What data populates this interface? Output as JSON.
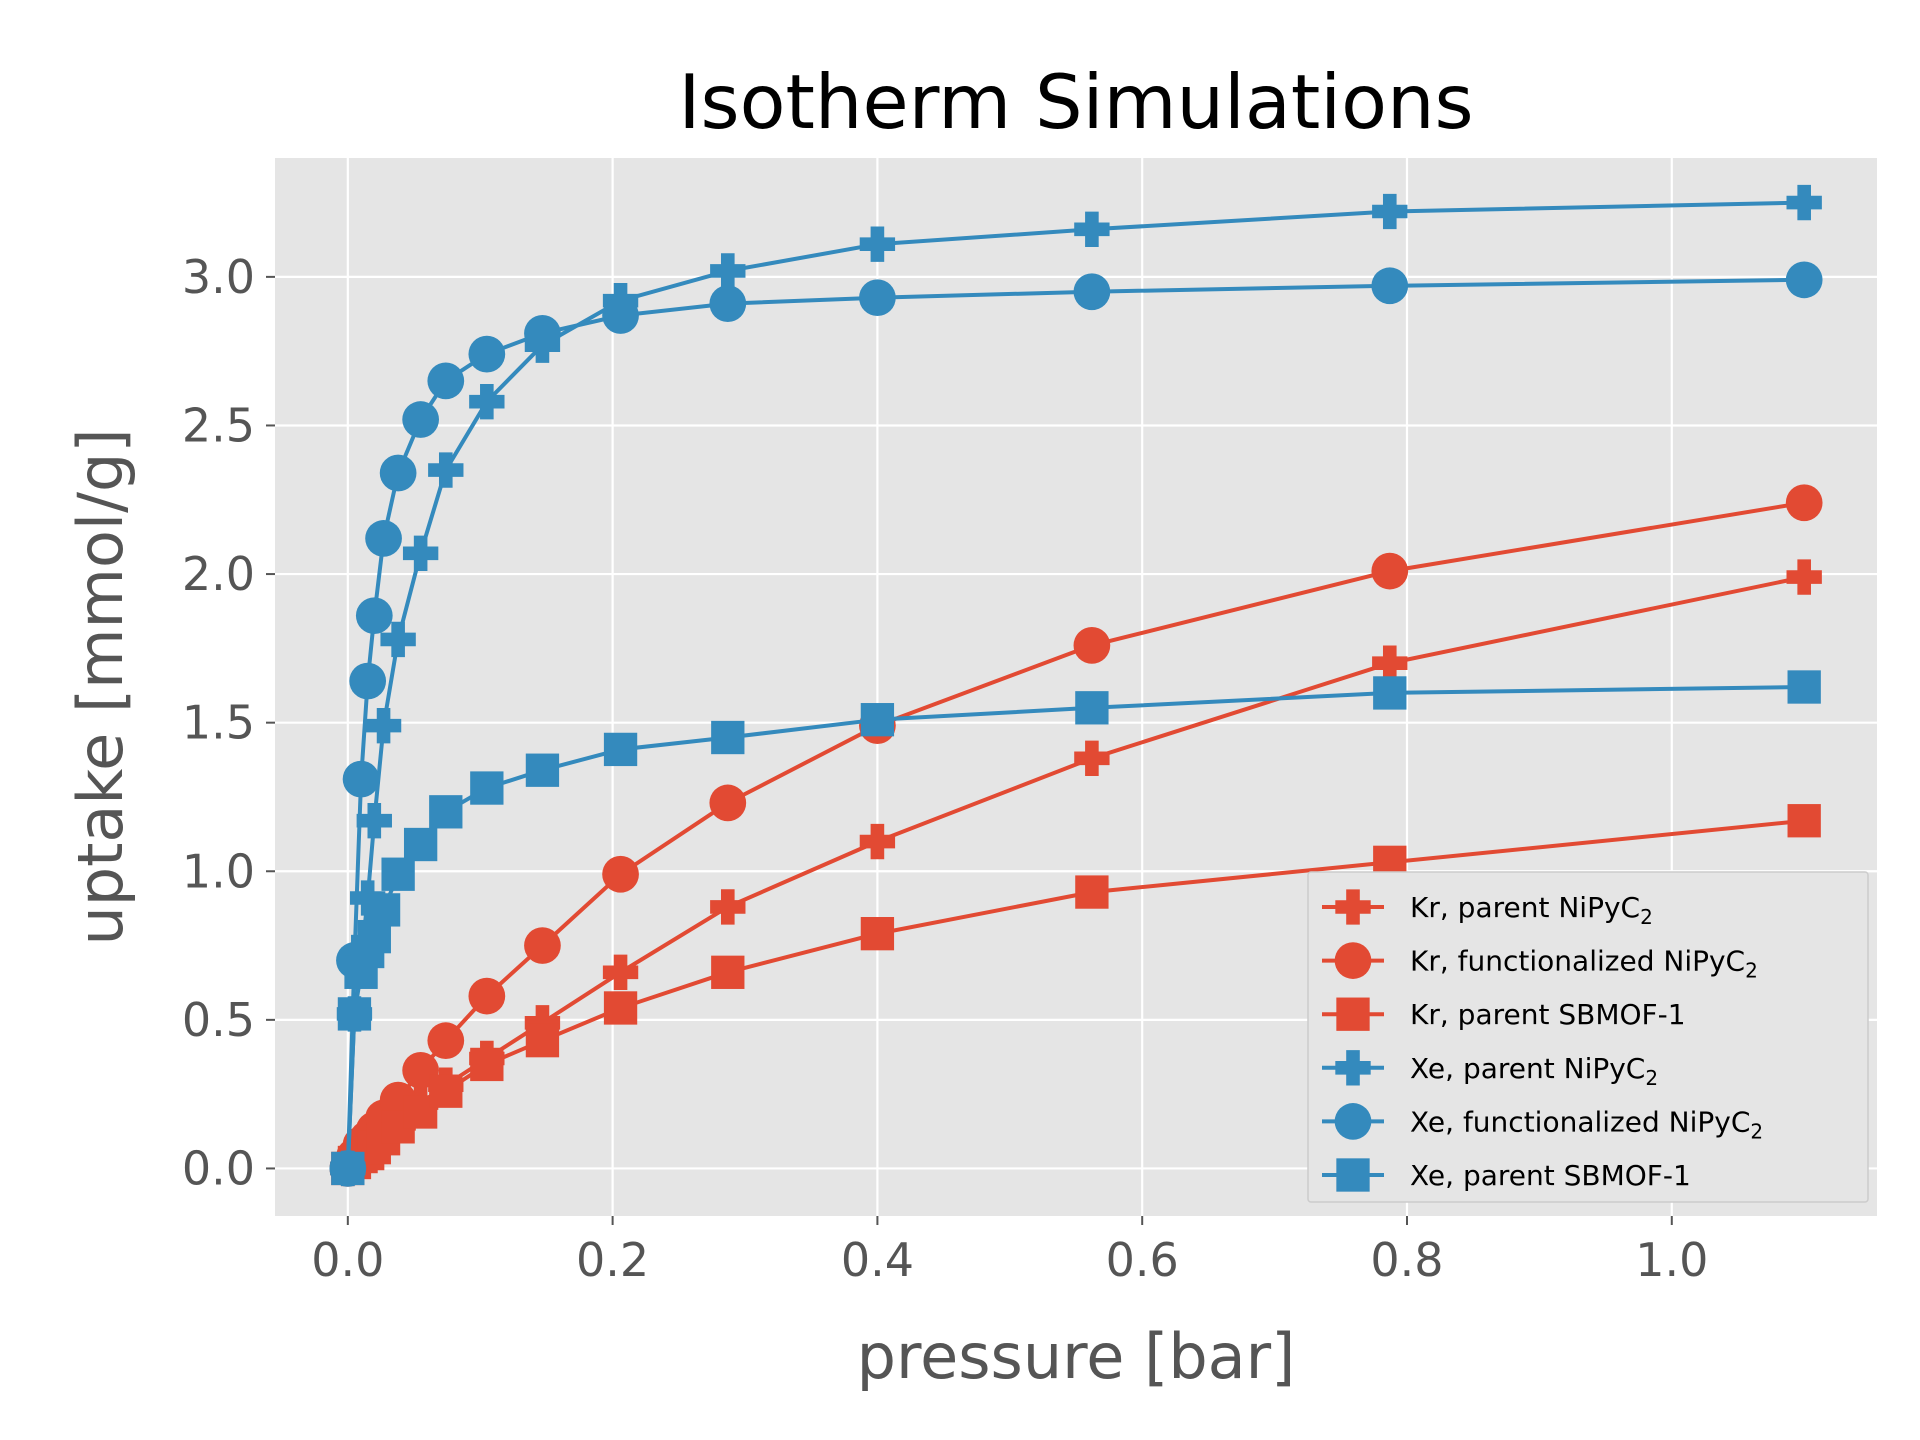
{
  "chart_data": {
    "type": "line",
    "title": "Isotherm Simulations",
    "xlabel": "pressure [bar]",
    "ylabel": "uptake [mmol/g]",
    "xlim": [
      -0.055,
      1.155
    ],
    "ylim": [
      -0.16,
      3.4
    ],
    "xticks": [
      0.0,
      0.2,
      0.4,
      0.6,
      0.8,
      1.0
    ],
    "xtick_labels": [
      "0.0",
      "0.2",
      "0.4",
      "0.6",
      "0.8",
      "1.0"
    ],
    "yticks": [
      0.0,
      0.5,
      1.0,
      1.5,
      2.0,
      2.5,
      3.0
    ],
    "ytick_labels": [
      "0.0",
      "0.5",
      "1.0",
      "1.5",
      "2.0",
      "2.5",
      "3.0"
    ],
    "grid": true,
    "legend_position": "lower-right",
    "colors": {
      "plot_background": "#e5e5e5",
      "grid": "#ffffff",
      "kr": "#e24a33",
      "xe": "#348abd"
    },
    "series": [
      {
        "name_main": "Kr, parent NiPyC",
        "name_sub": "2",
        "element": "Kr",
        "marker": "plus",
        "x": [
          0.0,
          0.005,
          0.01,
          0.015,
          0.02,
          0.027,
          0.038,
          0.055,
          0.074,
          0.105,
          0.147,
          0.206,
          0.287,
          0.4,
          0.562,
          0.787,
          1.1
        ],
        "y": [
          0.0,
          0.03,
          0.05,
          0.07,
          0.09,
          0.11,
          0.15,
          0.22,
          0.28,
          0.37,
          0.49,
          0.66,
          0.88,
          1.1,
          1.38,
          1.7,
          1.99
        ]
      },
      {
        "name_main": "Kr, functionalized NiPyC",
        "name_sub": "2",
        "element": "Kr",
        "marker": "circle",
        "x": [
          0.0,
          0.005,
          0.01,
          0.015,
          0.02,
          0.027,
          0.038,
          0.055,
          0.074,
          0.105,
          0.147,
          0.206,
          0.287,
          0.4,
          0.562,
          0.787,
          1.1
        ],
        "y": [
          0.0,
          0.04,
          0.08,
          0.1,
          0.13,
          0.17,
          0.23,
          0.33,
          0.43,
          0.58,
          0.75,
          0.99,
          1.23,
          1.49,
          1.76,
          2.01,
          2.24
        ]
      },
      {
        "name_main": "Kr, parent SBMOF-1",
        "name_sub": "",
        "element": "Kr",
        "marker": "square",
        "x": [
          0.0,
          0.005,
          0.01,
          0.015,
          0.02,
          0.027,
          0.038,
          0.055,
          0.074,
          0.105,
          0.147,
          0.206,
          0.287,
          0.4,
          0.562,
          0.787,
          1.1
        ],
        "y": [
          0.0,
          0.02,
          0.04,
          0.05,
          0.07,
          0.1,
          0.14,
          0.19,
          0.26,
          0.35,
          0.43,
          0.54,
          0.66,
          0.79,
          0.93,
          1.03,
          1.17
        ]
      },
      {
        "name_main": "Xe, parent NiPyC",
        "name_sub": "2",
        "element": "Xe",
        "marker": "plus",
        "x": [
          0.0,
          0.005,
          0.01,
          0.015,
          0.02,
          0.027,
          0.038,
          0.055,
          0.074,
          0.105,
          0.147,
          0.206,
          0.287,
          0.4,
          0.562,
          0.787,
          1.1
        ],
        "y": [
          0.0,
          0.52,
          0.7,
          0.91,
          1.17,
          1.49,
          1.78,
          2.07,
          2.35,
          2.58,
          2.77,
          2.92,
          3.02,
          3.11,
          3.16,
          3.22,
          3.25
        ]
      },
      {
        "name_main": "Xe, functionalized NiPyC",
        "name_sub": "2",
        "element": "Xe",
        "marker": "circle",
        "x": [
          0.0,
          0.005,
          0.01,
          0.015,
          0.02,
          0.027,
          0.038,
          0.055,
          0.074,
          0.105,
          0.147,
          0.206,
          0.287,
          0.4,
          0.562,
          0.787,
          1.1
        ],
        "y": [
          0.0,
          0.7,
          1.31,
          1.64,
          1.86,
          2.12,
          2.34,
          2.52,
          2.65,
          2.74,
          2.81,
          2.87,
          2.91,
          2.93,
          2.95,
          2.97,
          2.99
        ]
      },
      {
        "name_main": "Xe, parent SBMOF-1",
        "name_sub": "",
        "element": "Xe",
        "marker": "square",
        "x": [
          0.0,
          0.005,
          0.01,
          0.015,
          0.02,
          0.027,
          0.038,
          0.055,
          0.074,
          0.105,
          0.147,
          0.206,
          0.287,
          0.4,
          0.562,
          0.787,
          1.1
        ],
        "y": [
          0.0,
          0.52,
          0.66,
          0.73,
          0.78,
          0.87,
          0.99,
          1.09,
          1.2,
          1.28,
          1.34,
          1.41,
          1.45,
          1.51,
          1.55,
          1.6,
          1.62
        ]
      }
    ]
  }
}
